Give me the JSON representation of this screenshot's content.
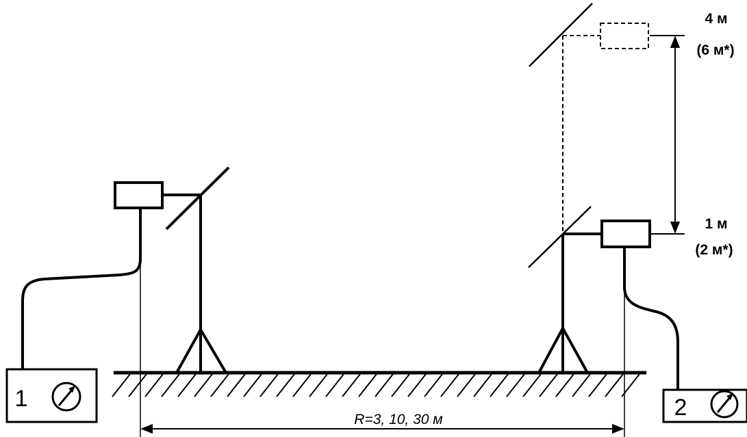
{
  "labels": {
    "height_max": "4 м",
    "height_max_alt": "(6 м*)",
    "height_min": "1 м",
    "height_min_alt": "(2 м*)",
    "distance": "R=3, 10, 30 м"
  },
  "devices": {
    "left_number": "1",
    "right_number": "2"
  },
  "icons": {
    "meter": "meter-gauge-icon"
  }
}
